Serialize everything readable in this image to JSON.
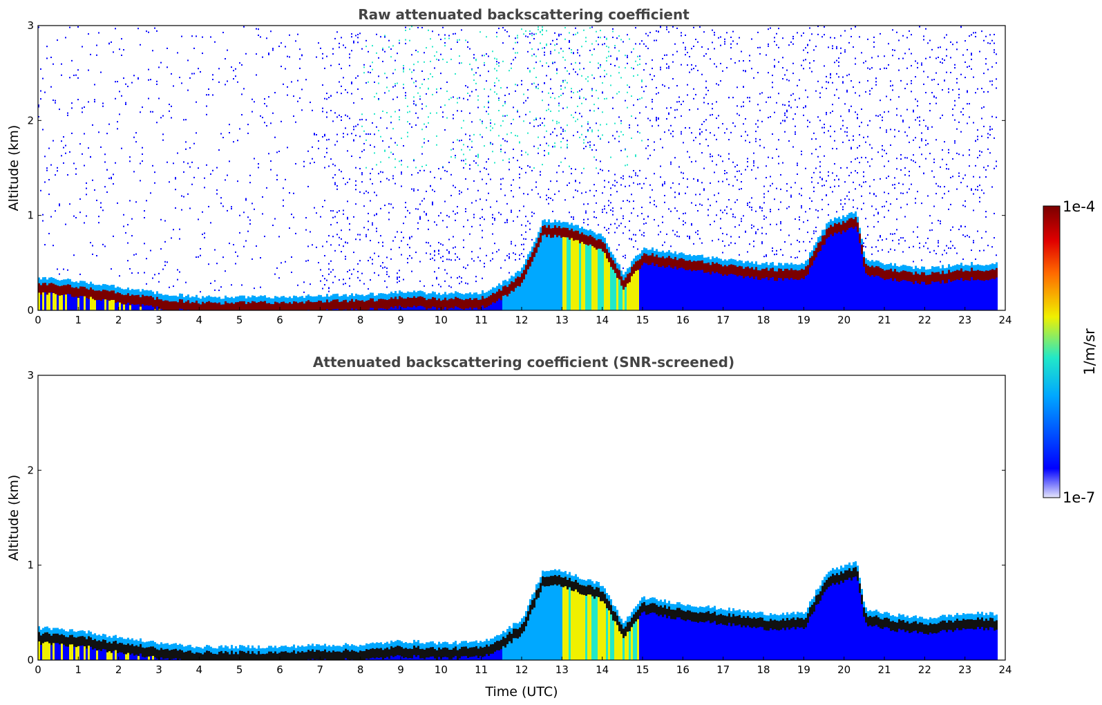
{
  "chart_data": [
    {
      "type": "heatmap",
      "title": "Raw attenuated backscattering coefficient",
      "xlabel": "",
      "ylabel": "Altitude (km)",
      "xlim": [
        0,
        24
      ],
      "ylim": [
        0,
        3
      ],
      "xticks": [
        "0",
        "1",
        "2",
        "3",
        "4",
        "5",
        "6",
        "7",
        "8",
        "9",
        "10",
        "11",
        "12",
        "13",
        "14",
        "15",
        "16",
        "17",
        "18",
        "19",
        "20",
        "21",
        "22",
        "23",
        "24"
      ],
      "yticks": [
        "0",
        "1",
        "2",
        "3"
      ],
      "aerosol_layer_top_km": {
        "time_utc": [
          0,
          1,
          2,
          3,
          4,
          5,
          6,
          7,
          8,
          9,
          10,
          11,
          11.5,
          12,
          12.5,
          13,
          13.5,
          14,
          14.5,
          15,
          16,
          17,
          18,
          19,
          19.3,
          19.6,
          20,
          20.3,
          20.5,
          21,
          22,
          23,
          23.8
        ],
        "altitude_km": [
          0.3,
          0.27,
          0.2,
          0.14,
          0.1,
          0.1,
          0.1,
          0.12,
          0.12,
          0.16,
          0.14,
          0.15,
          0.25,
          0.4,
          0.9,
          0.9,
          0.82,
          0.75,
          0.35,
          0.62,
          0.55,
          0.5,
          0.45,
          0.45,
          0.7,
          0.9,
          0.95,
          1.0,
          0.5,
          0.45,
          0.4,
          0.45,
          0.45
        ]
      },
      "sparse_signal_above_layer": true
    },
    {
      "type": "heatmap",
      "title": "Attenuated backscattering coefficient (SNR-screened)",
      "xlabel": "Time (UTC)",
      "ylabel": "Altitude (km)",
      "xlim": [
        0,
        24
      ],
      "ylim": [
        0,
        3
      ],
      "xticks": [
        "0",
        "1",
        "2",
        "3",
        "4",
        "5",
        "6",
        "7",
        "8",
        "9",
        "10",
        "11",
        "12",
        "13",
        "14",
        "15",
        "16",
        "17",
        "18",
        "19",
        "20",
        "21",
        "22",
        "23",
        "24"
      ],
      "yticks": [
        "0",
        "1",
        "2",
        "3"
      ],
      "aerosol_layer_top_km": {
        "time_utc": [
          0,
          1,
          2,
          3,
          4,
          5,
          6,
          7,
          8,
          9,
          10,
          11,
          11.5,
          12,
          12.5,
          13,
          13.5,
          14,
          14.5,
          15,
          16,
          17,
          18,
          19,
          19.3,
          19.6,
          20,
          20.3,
          20.5,
          21,
          22,
          23,
          23.8
        ],
        "altitude_km": [
          0.3,
          0.27,
          0.2,
          0.14,
          0.1,
          0.1,
          0.1,
          0.12,
          0.12,
          0.16,
          0.14,
          0.15,
          0.25,
          0.4,
          0.9,
          0.9,
          0.82,
          0.75,
          0.35,
          0.62,
          0.55,
          0.5,
          0.45,
          0.45,
          0.7,
          0.9,
          0.95,
          1.0,
          0.5,
          0.45,
          0.4,
          0.45,
          0.45
        ]
      },
      "sparse_signal_above_layer": false
    }
  ],
  "colorbar": {
    "max_label": "1e-4",
    "min_label": "1e-7",
    "unit_label": "1/m/sr",
    "colormap": "jet",
    "colors": [
      "#e6e6fa",
      "#0000ff",
      "#00a8ff",
      "#22e8c8",
      "#f0f000",
      "#ff6a00",
      "#e00000",
      "#7a0000"
    ]
  }
}
